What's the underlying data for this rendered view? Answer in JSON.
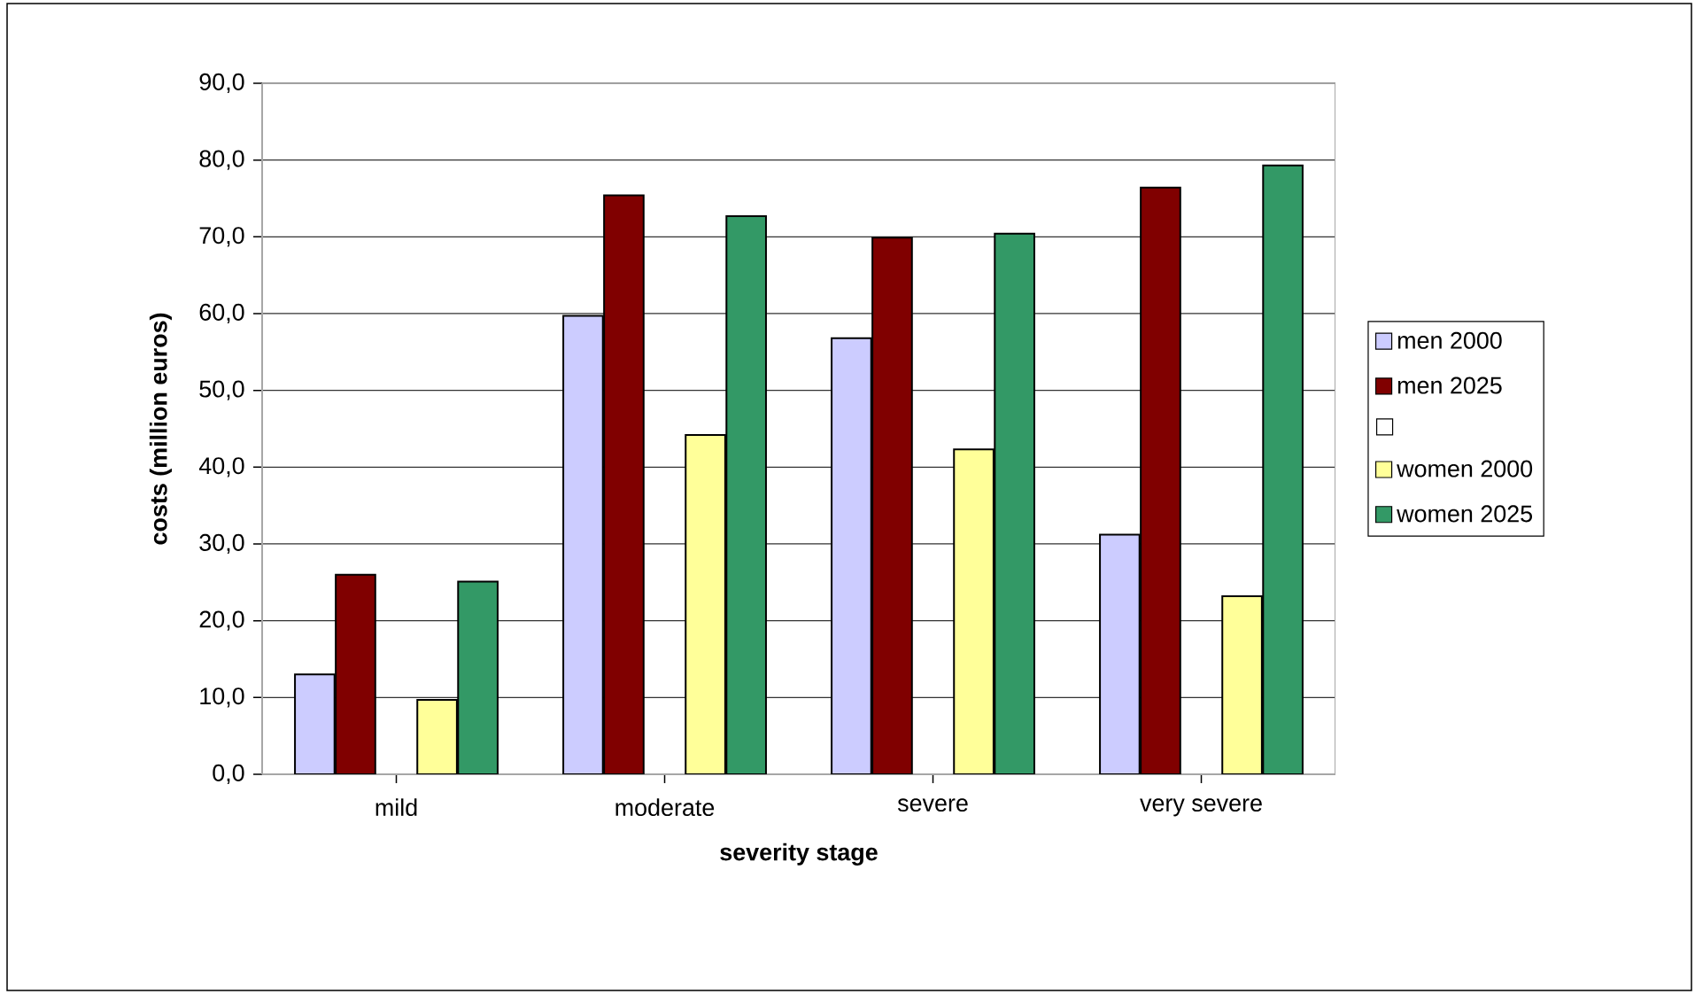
{
  "chart_data": {
    "type": "bar",
    "xlabel": "severity stage",
    "ylabel": "costs (million euros)",
    "categories": [
      "mild",
      "moderate",
      "severe",
      "very severe"
    ],
    "series": [
      {
        "name": "men 2000",
        "color": "#ccccff",
        "values": [
          13.0,
          59.7,
          56.8,
          31.2
        ]
      },
      {
        "name": "men 2025",
        "color": "#800000",
        "values": [
          26.0,
          75.4,
          69.9,
          76.4
        ]
      },
      {
        "color": "#ffffff",
        "values": [
          null,
          null,
          null,
          null
        ]
      },
      {
        "name": "women 2000",
        "color": "#ffff99",
        "values": [
          9.7,
          44.2,
          42.3,
          23.2
        ]
      },
      {
        "name": "women 2025",
        "color": "#339966",
        "values": [
          25.1,
          72.7,
          70.4,
          79.3
        ]
      }
    ],
    "ylim": [
      0,
      90
    ],
    "yticks": [
      {
        "value": 0,
        "label": "0,0"
      },
      {
        "value": 10,
        "label": "10,0"
      },
      {
        "value": 20,
        "label": "20,0"
      },
      {
        "value": 30,
        "label": "30,0"
      },
      {
        "value": 40,
        "label": "40,0"
      },
      {
        "value": 50,
        "label": "50,0"
      },
      {
        "value": 60,
        "label": "60,0"
      },
      {
        "value": 70,
        "label": "70,0"
      },
      {
        "value": 80,
        "label": "80,0"
      },
      {
        "value": 90,
        "label": "90,0"
      }
    ],
    "grid": "y",
    "legend": "right"
  }
}
